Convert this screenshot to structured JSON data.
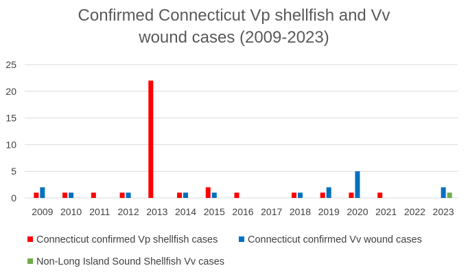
{
  "chart_data": {
    "type": "bar",
    "title": [
      "Confirmed Connecticut Vp shellfish and Vv",
      "wound cases (2009-2023)"
    ],
    "xlabel": "",
    "ylabel": "",
    "categories": [
      "2009",
      "2010",
      "2011",
      "2012",
      "2013",
      "2014",
      "2015",
      "2016",
      "2017",
      "2018",
      "2019",
      "2020",
      "2021",
      "2022",
      "2023"
    ],
    "ylim": [
      0,
      25
    ],
    "yticks": [
      "0",
      "5",
      "10",
      "15",
      "20",
      "25"
    ],
    "grid": true,
    "legend_position": "bottom",
    "series": [
      {
        "name": "Connecticut confirmed Vp shellfish cases",
        "color": "#FF0000",
        "values": [
          1,
          1,
          1,
          1,
          22,
          1,
          2,
          1,
          0,
          1,
          1,
          1,
          1,
          0,
          0
        ]
      },
      {
        "name": "Connecticut confirmed Vv wound cases",
        "color": "#0070C0",
        "values": [
          2,
          1,
          0,
          1,
          0,
          1,
          1,
          0,
          0,
          1,
          2,
          5,
          0,
          0,
          2
        ]
      },
      {
        "name": "Non-Long Island Sound Shellfish Vv cases",
        "color": "#70AD47",
        "values": [
          0,
          0,
          0,
          0,
          0,
          0,
          0,
          0,
          0,
          0,
          0,
          0,
          0,
          0,
          1
        ]
      }
    ]
  }
}
